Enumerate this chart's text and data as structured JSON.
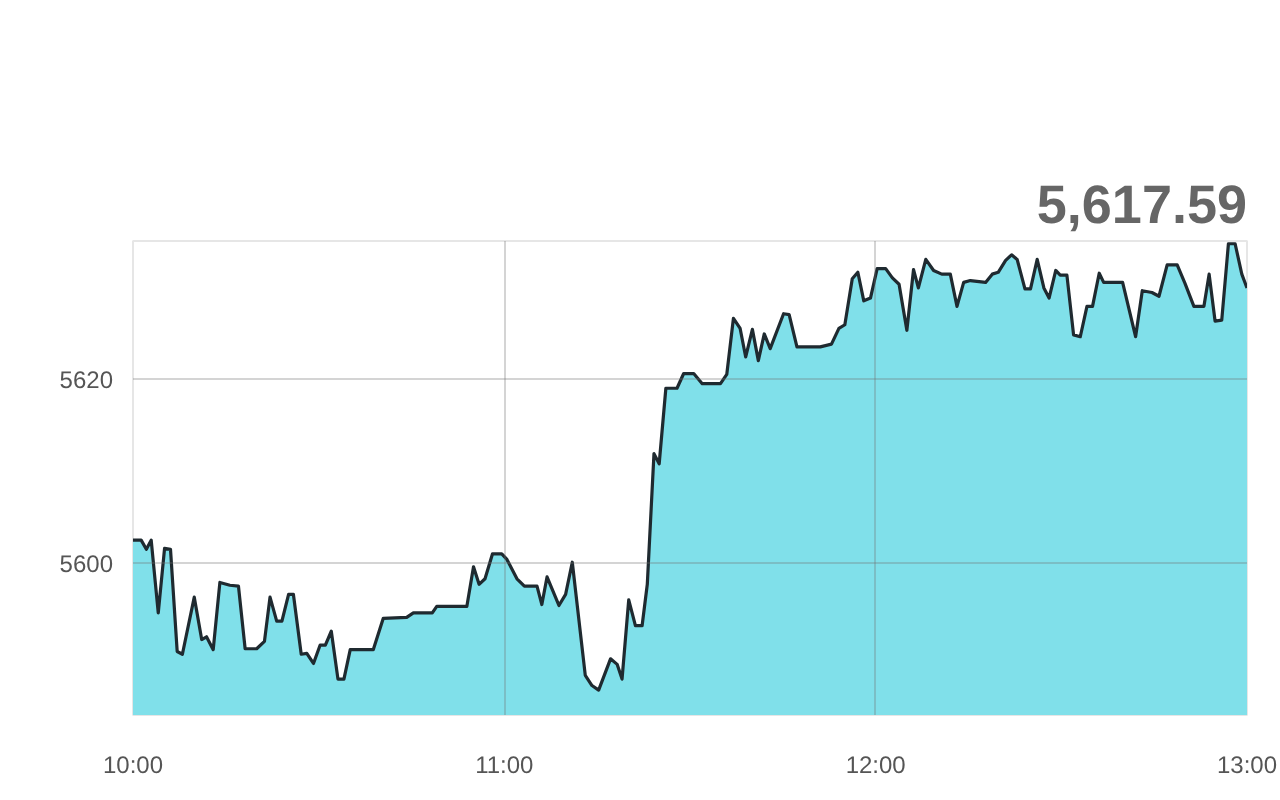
{
  "chart_data": {
    "type": "area",
    "annotations": [
      "5,617.59"
    ],
    "x": [
      10.0,
      10.022,
      10.036,
      10.049,
      10.068,
      10.085,
      10.101,
      10.119,
      10.133,
      10.165,
      10.185,
      10.198,
      10.216,
      10.234,
      10.261,
      10.284,
      10.302,
      10.333,
      10.354,
      10.369,
      10.387,
      10.401,
      10.419,
      10.432,
      10.453,
      10.468,
      10.486,
      10.504,
      10.518,
      10.534,
      10.552,
      10.568,
      10.585,
      10.647,
      10.674,
      10.737,
      10.755,
      10.806,
      10.818,
      10.899,
      10.917,
      10.932,
      10.948,
      10.968,
      10.993,
      11.007,
      11.034,
      11.054,
      11.088,
      11.101,
      11.115,
      11.147,
      11.165,
      11.183,
      11.218,
      11.236,
      11.254,
      11.286,
      11.304,
      11.317,
      11.335,
      11.353,
      11.371,
      11.385,
      11.403,
      11.417,
      11.435,
      11.465,
      11.483,
      11.51,
      11.533,
      11.582,
      11.599,
      11.617,
      11.635,
      11.65,
      11.668,
      11.684,
      11.7,
      11.716,
      11.752,
      11.767,
      11.788,
      11.851,
      11.881,
      11.901,
      11.917,
      11.937,
      11.952,
      11.968,
      11.986,
      12.004,
      12.027,
      12.045,
      12.063,
      12.084,
      12.102,
      12.115,
      12.135,
      12.156,
      12.178,
      12.201,
      12.219,
      12.237,
      12.255,
      12.296,
      12.314,
      12.33,
      12.35,
      12.366,
      12.381,
      12.402,
      12.417,
      12.435,
      12.453,
      12.467,
      12.485,
      12.497,
      12.515,
      12.533,
      12.551,
      12.569,
      12.584,
      12.602,
      12.614,
      12.665,
      12.7,
      12.718,
      12.744,
      12.763,
      12.785,
      12.812,
      12.833,
      12.857,
      12.884,
      12.898,
      12.914,
      12.932,
      12.95,
      12.968,
      12.986,
      13.0
    ],
    "values": [
      5602.5,
      5602.5,
      5601.5,
      5602.5,
      5594.6,
      5601.6,
      5601.5,
      5590.4,
      5590.1,
      5596.3,
      5591.7,
      5592.0,
      5590.6,
      5597.9,
      5597.6,
      5597.5,
      5590.7,
      5590.7,
      5591.5,
      5596.3,
      5593.7,
      5593.7,
      5596.6,
      5596.6,
      5590.1,
      5590.2,
      5589.1,
      5591.1,
      5591.1,
      5592.6,
      5587.4,
      5587.4,
      5590.6,
      5590.6,
      5594.0,
      5594.1,
      5594.6,
      5594.6,
      5595.3,
      5595.3,
      5599.6,
      5597.7,
      5598.3,
      5601.0,
      5601.0,
      5600.4,
      5598.3,
      5597.5,
      5597.5,
      5595.5,
      5598.5,
      5595.4,
      5596.6,
      5600.1,
      5587.8,
      5586.7,
      5586.2,
      5589.6,
      5589.0,
      5587.4,
      5596.0,
      5593.2,
      5593.2,
      5597.7,
      5611.9,
      5610.8,
      5619.0,
      5619.0,
      5620.6,
      5620.6,
      5619.5,
      5619.5,
      5620.5,
      5626.6,
      5625.5,
      5622.4,
      5625.4,
      5622.0,
      5624.9,
      5623.3,
      5627.1,
      5627.0,
      5623.5,
      5623.5,
      5623.8,
      5625.5,
      5625.9,
      5630.9,
      5631.6,
      5628.5,
      5628.8,
      5632.0,
      5632.0,
      5631.0,
      5630.3,
      5625.3,
      5631.9,
      5629.9,
      5633.0,
      5631.8,
      5631.4,
      5631.4,
      5627.9,
      5630.5,
      5630.7,
      5630.5,
      5631.4,
      5631.6,
      5632.9,
      5633.5,
      5633.0,
      5629.8,
      5629.8,
      5633.0,
      5629.9,
      5628.8,
      5631.8,
      5631.3,
      5631.3,
      5624.8,
      5624.6,
      5627.9,
      5627.9,
      5631.5,
      5630.5,
      5630.5,
      5624.6,
      5629.6,
      5629.4,
      5629.0,
      5632.4,
      5632.4,
      5630.4,
      5627.9,
      5627.9,
      5631.4,
      5626.3,
      5626.4,
      5634.7,
      5634.7,
      5631.4,
      5629.9
    ],
    "color": "#80e0ea",
    "xlim": [
      10,
      13
    ],
    "ylim": [
      5583.5,
      5635
    ],
    "xticks": [
      {
        "value": 10,
        "label": "10:00"
      },
      {
        "value": 11,
        "label": "11:00"
      },
      {
        "value": 12,
        "label": "12:00"
      },
      {
        "value": 13,
        "label": "13:00"
      }
    ],
    "yticks": [
      5600,
      5620
    ],
    "grid": true
  }
}
